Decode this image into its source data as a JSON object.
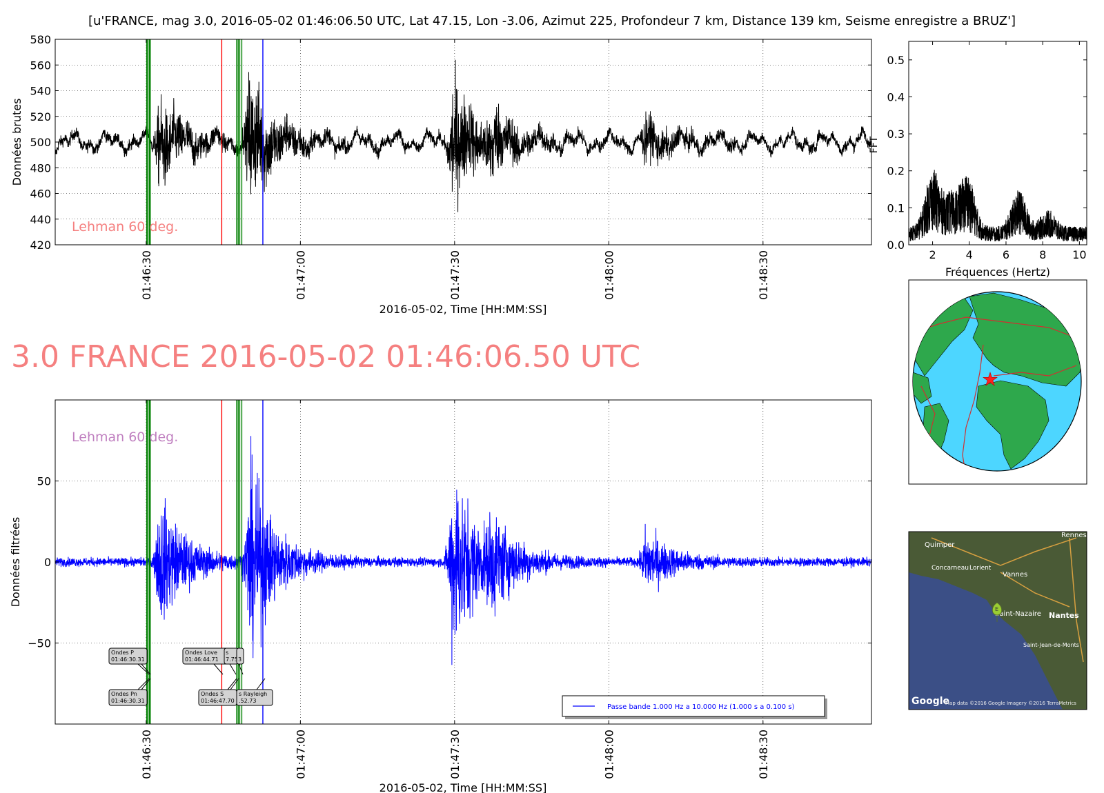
{
  "figure": {
    "suptitle": "[u'FRANCE, mag 3.0, 2016-05-02 01:46:06.50 UTC, Lat 47.15, Lon -3.06, Azimut 225, Profondeur 7 km, Distance   139 km, Seisme enregistre a BRUZ']",
    "big_title": "3.0 FRANCE 2016-05-02 01:46:06.50 UTC"
  },
  "colors": {
    "raw_trace": "#000000",
    "filtered_trace": "#0000ff",
    "p_lines": "#008000",
    "s_red_line": "#ff0000",
    "rayleigh_line": "#0000ff",
    "lehman_raw_text": "#f58080",
    "lehman_filt_text": "#c080c0",
    "big_title": "#f58080"
  },
  "annotations": {
    "lehman_raw": "Lehman 60 deg.",
    "lehman_filtered": "Lehman 60 deg.",
    "boxes": [
      {
        "line1": "Ondes P",
        "line2": "01:46:30.31"
      },
      {
        "line1": "Ondes Love",
        "line2": "01:46:44.71"
      },
      {
        "line1": "s",
        "line2": "7.75"
      },
      {
        "line1": "",
        "line2": "3"
      },
      {
        "line1": "Ondes Pn",
        "line2": "01:46:30.31"
      },
      {
        "line1": "Ondes S",
        "line2": "01:46:47.70"
      },
      {
        "line1": "s Rayleigh",
        "line2": ".52.73"
      }
    ]
  },
  "legend": {
    "filter_label": "Passe bande 1.000 Hz a 10.000 Hz (1.000 s a 0.100 s)"
  },
  "map": {
    "labels": [
      "Quimper",
      "Rennes",
      "Concarneau",
      "Lorient",
      "Vannes",
      "Saint-Nazaire",
      "Nantes",
      "Saint-Jean-de-Monts"
    ],
    "marker": "E",
    "google_logo": "Google",
    "credit": "Map data ©2016 Google  Imagery ©2016 TerraMetrics"
  },
  "chart_data": [
    {
      "type": "line",
      "name": "raw",
      "title": "",
      "xlabel": "2016-05-02, Time [HH:MM:SS]",
      "ylabel": "Données brutes",
      "y2label": "FFT",
      "xlim": [
        "01:46:12.3",
        "01:48:51.1"
      ],
      "ylim": [
        420,
        580
      ],
      "yticks": [
        420,
        440,
        460,
        480,
        500,
        520,
        540,
        560,
        580
      ],
      "xtick_labels": [
        "01:46:30",
        "01:47:00",
        "01:47:30",
        "01:48:00",
        "01:48:30"
      ],
      "grid": true,
      "baseline": 500,
      "vlines": [
        {
          "t": "01:46:30.1",
          "color": "green"
        },
        {
          "t": "01:46:30.3",
          "color": "green"
        },
        {
          "t": "01:46:30.6",
          "color": "green"
        },
        {
          "t": "01:46:30.8",
          "color": "green"
        },
        {
          "t": "01:46:44.7",
          "color": "red"
        },
        {
          "t": "01:46:47.6",
          "color": "green"
        },
        {
          "t": "01:46:47.9",
          "color": "green"
        },
        {
          "t": "01:46:48.2",
          "color": "green"
        },
        {
          "t": "01:46:48.6",
          "color": "green"
        },
        {
          "t": "01:46:52.7",
          "color": "blue"
        }
      ],
      "bursts": [
        {
          "t": "01:46:32.5",
          "amplitude": 32
        },
        {
          "t": "01:46:50",
          "amplitude": 48
        },
        {
          "t": "01:47:29.5",
          "amplitude": 45
        },
        {
          "t": "01:47:37",
          "amplitude": 18
        },
        {
          "t": "01:48:07",
          "amplitude": 14
        }
      ]
    },
    {
      "type": "line",
      "name": "fft",
      "xlabel": "Fréquences (Hertz)",
      "xlim": [
        0.7,
        10.4
      ],
      "ylim": [
        0.0,
        0.55
      ],
      "xticks": [
        2,
        4,
        6,
        8,
        10
      ],
      "yticks": [
        0.0,
        0.1,
        0.2,
        0.3,
        0.4,
        0.5
      ],
      "peaks": [
        {
          "freq": 2.0,
          "value": 0.24
        },
        {
          "freq": 3.0,
          "value": 0.15
        },
        {
          "freq": 3.9,
          "value": 0.22
        },
        {
          "freq": 6.7,
          "value": 0.17
        },
        {
          "freq": 8.3,
          "value": 0.1
        }
      ]
    },
    {
      "type": "line",
      "name": "filtered",
      "xlabel": "2016-05-02, Time [HH:MM:SS]",
      "ylabel": "Données filtrées",
      "xlim": [
        "01:46:12.3",
        "01:48:51.1"
      ],
      "ylim": [
        -100,
        100
      ],
      "yticks": [
        -50,
        0,
        50
      ],
      "xtick_labels": [
        "01:46:30",
        "01:47:00",
        "01:47:30",
        "01:48:00",
        "01:48:30"
      ],
      "grid": true,
      "legend": "Passe bande 1.000 Hz a 10.000 Hz (1.000 s a 0.100 s)",
      "legend_position": "lower-right",
      "bursts": [
        {
          "t": "01:46:32.5",
          "amplitude": 38
        },
        {
          "t": "01:46:50",
          "amplitude": 55
        },
        {
          "t": "01:47:29.5",
          "amplitude": 57
        },
        {
          "t": "01:47:37",
          "amplitude": 20
        },
        {
          "t": "01:48:07",
          "amplitude": 18
        }
      ]
    }
  ]
}
